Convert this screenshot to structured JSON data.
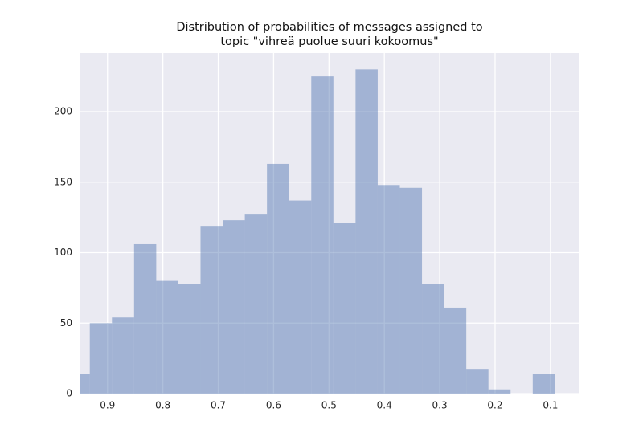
{
  "chart_data": {
    "type": "histogram",
    "title": [
      "Distribution of probabilities of messages assigned to",
      "topic \"vihreä puolue suuri kokoomus\""
    ],
    "bins": [
      0.092,
      0.132,
      0.172,
      0.212,
      0.252,
      0.292,
      0.332,
      0.372,
      0.412,
      0.452,
      0.492,
      0.532,
      0.572,
      0.612,
      0.652,
      0.692,
      0.732,
      0.772,
      0.812,
      0.852,
      0.892,
      0.932,
      0.972
    ],
    "values": [
      14,
      0,
      3,
      17,
      61,
      78,
      146,
      148,
      230,
      121,
      225,
      137,
      163,
      127,
      123,
      119,
      78,
      80,
      106,
      54,
      50,
      14
    ],
    "color": "#4c72b0",
    "opacity": 0.45,
    "background": "#eaeaf2",
    "xlim": [
      0.949,
      0.049
    ],
    "xticks": [
      0.9,
      0.8,
      0.7,
      0.6,
      0.5,
      0.4,
      0.3,
      0.2,
      0.1
    ],
    "ylim": [
      0,
      241.6
    ],
    "yticks": [
      0,
      50,
      100,
      150,
      200
    ],
    "grid": true
  }
}
